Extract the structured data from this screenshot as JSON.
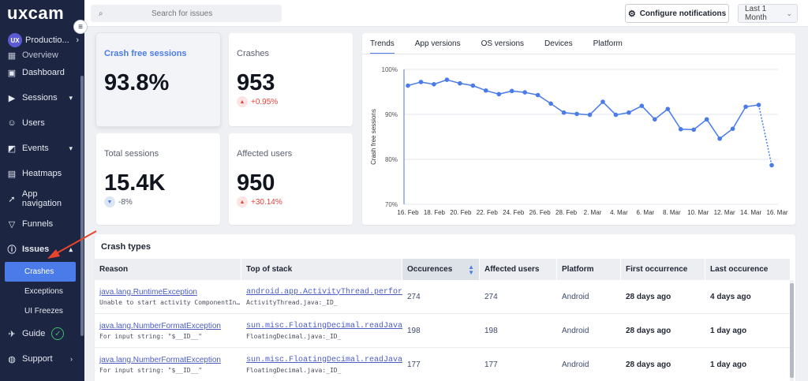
{
  "sidebar": {
    "logo": "uxcam",
    "app_badge": "UX",
    "app_name": "Productio...",
    "items": [
      {
        "label": "Overview",
        "icon": "grid-icon"
      },
      {
        "label": "Dashboard",
        "icon": "dashboard-icon"
      },
      {
        "label": "Sessions",
        "icon": "play-icon"
      },
      {
        "label": "Users",
        "icon": "users-icon"
      },
      {
        "label": "Events",
        "icon": "events-icon"
      },
      {
        "label": "Heatmaps",
        "icon": "heatmap-icon"
      },
      {
        "label": "App navigation",
        "icon": "navigation-icon"
      },
      {
        "label": "Funnels",
        "icon": "funnel-icon"
      },
      {
        "label": "Issues",
        "icon": "issues-icon"
      },
      {
        "label": "Guide",
        "icon": "guide-icon"
      },
      {
        "label": "Support",
        "icon": "support-icon"
      }
    ],
    "issues_sub": [
      "Crashes",
      "Exceptions",
      "UI Freezes"
    ]
  },
  "topbar": {
    "search_placeholder": "Search for issues",
    "configure_label": "Configure notifications",
    "range_label": "Last 1 Month"
  },
  "stats": {
    "crash_free": {
      "label": "Crash free sessions",
      "value": "93.8%"
    },
    "crashes": {
      "label": "Crashes",
      "value": "953",
      "change": "+0.95%"
    },
    "total_sessions": {
      "label": "Total sessions",
      "value": "15.4K",
      "change": "-8%"
    },
    "affected_users": {
      "label": "Affected users",
      "value": "950",
      "change": "+30.14%"
    }
  },
  "chart": {
    "tabs": [
      "Trends",
      "App versions",
      "OS versions",
      "Devices",
      "Platform"
    ]
  },
  "chart_data": {
    "type": "line",
    "ylabel": "Crash free sessions",
    "yticks": [
      "100%",
      "90%",
      "80%",
      "70%"
    ],
    "ylim": [
      70,
      100
    ],
    "xticks": [
      "16. Feb",
      "18. Feb",
      "20. Feb",
      "22. Feb",
      "24. Feb",
      "26. Feb",
      "28. Feb",
      "2. Mar",
      "4. Mar",
      "6. Mar",
      "8. Mar",
      "10. Mar",
      "12. Mar",
      "14. Mar",
      "16. Mar"
    ],
    "grid": true,
    "series": [
      {
        "values": [
          96.4,
          97.2,
          96.7,
          97.7,
          96.9,
          96.4,
          95.3,
          94.5,
          95.2,
          94.9,
          94.3,
          92.4,
          90.4,
          90.1,
          89.9,
          92.8,
          89.9,
          90.4,
          91.9,
          88.9,
          91.2,
          86.7,
          86.6,
          88.9,
          84.6,
          86.8,
          91.7,
          92.1,
          78.7
        ]
      }
    ],
    "last_segment_dotted": true,
    "color": "#4a7be8"
  },
  "table": {
    "title": "Crash types",
    "columns": [
      "Reason",
      "Top of stack",
      "Occurences",
      "Affected users",
      "Platform",
      "First occurrence",
      "Last occurence"
    ],
    "rows": [
      {
        "reason": "java.lang.RuntimeException",
        "reason_detail": "Unable to start activity ComponentIn…",
        "stack": "android.app.ActivityThread.performLaun…",
        "stack_detail": "ActivityThread.java:_ID_",
        "occurrences": "274",
        "affected": "274",
        "platform": "Android",
        "first": "28 days ago",
        "last": "4 days ago"
      },
      {
        "reason": "java.lang.NumberFormatException",
        "reason_detail": "For input string: \"$__ID__\"",
        "stack": "sun.misc.FloatingDecimal.readJavaForm…",
        "stack_detail": "FloatingDecimal.java:_ID_",
        "occurrences": "198",
        "affected": "198",
        "platform": "Android",
        "first": "28 days ago",
        "last": "1 day ago"
      },
      {
        "reason": "java.lang.NumberFormatException",
        "reason_detail": "For input string: \"$__ID__\"",
        "stack": "sun.misc.FloatingDecimal.readJavaForm…",
        "stack_detail": "FloatingDecimal.java:_ID_",
        "occurrences": "177",
        "affected": "177",
        "platform": "Android",
        "first": "28 days ago",
        "last": "1 day ago"
      }
    ]
  },
  "colors": {
    "accent": "#4a7be8",
    "sidebar_bg": "#1c2541",
    "positive_change": "#e0443a",
    "annotation_arrow": "#e8452c"
  }
}
